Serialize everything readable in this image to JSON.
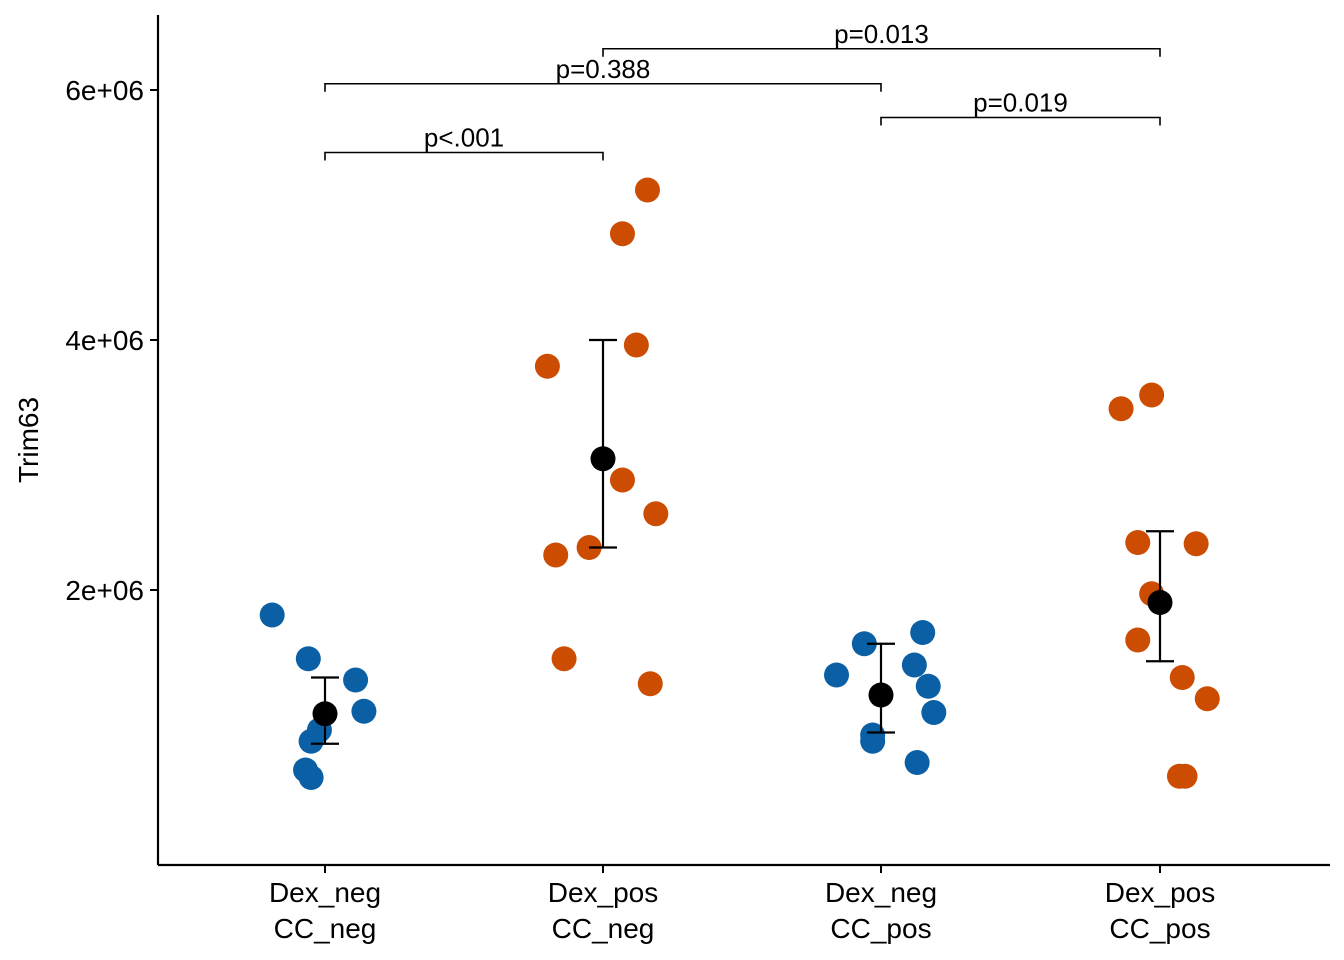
{
  "chart_data": {
    "type": "scatter",
    "title": "",
    "xlabel": "",
    "ylabel": "Trim63",
    "ylim": [
      -200000,
      6600000
    ],
    "yticks": [
      2000000,
      4000000,
      6000000
    ],
    "ytick_labels": [
      "2e+06",
      "4e+06",
      "6e+06"
    ],
    "grid": false,
    "legend": "none",
    "categories": [
      {
        "line1": "Dex_neg",
        "line2": "CC_neg"
      },
      {
        "line1": "Dex_pos",
        "line2": "CC_neg"
      },
      {
        "line1": "Dex_neg",
        "line2": "CC_pos"
      },
      {
        "line1": "Dex_pos",
        "line2": "CC_pos"
      }
    ],
    "groups": [
      {
        "color": "#0b5fa5",
        "points": [
          {
            "jitter": -0.19,
            "y": 1800000
          },
          {
            "jitter": -0.06,
            "y": 1450000
          },
          {
            "jitter": 0.11,
            "y": 1280000
          },
          {
            "jitter": 0.14,
            "y": 1030000
          },
          {
            "jitter": -0.05,
            "y": 790000
          },
          {
            "jitter": -0.02,
            "y": 880000
          },
          {
            "jitter": -0.07,
            "y": 560000
          },
          {
            "jitter": -0.05,
            "y": 500000
          }
        ],
        "mean": 1010000,
        "err_low": 770000,
        "err_high": 1300000
      },
      {
        "color": "#cc4c02",
        "points": [
          {
            "jitter": 0.16,
            "y": 5200000
          },
          {
            "jitter": 0.07,
            "y": 4850000
          },
          {
            "jitter": 0.12,
            "y": 3960000
          },
          {
            "jitter": -0.2,
            "y": 3790000
          },
          {
            "jitter": 0.07,
            "y": 2880000
          },
          {
            "jitter": 0.19,
            "y": 2610000
          },
          {
            "jitter": -0.05,
            "y": 2340000
          },
          {
            "jitter": -0.17,
            "y": 2280000
          },
          {
            "jitter": -0.14,
            "y": 1450000
          },
          {
            "jitter": 0.17,
            "y": 1250000
          }
        ],
        "mean": 3050000,
        "err_low": 2340000,
        "err_high": 4000000
      },
      {
        "color": "#0b5fa5",
        "points": [
          {
            "jitter": 0.15,
            "y": 1660000
          },
          {
            "jitter": -0.06,
            "y": 1570000
          },
          {
            "jitter": 0.12,
            "y": 1400000
          },
          {
            "jitter": -0.16,
            "y": 1320000
          },
          {
            "jitter": 0.17,
            "y": 1230000
          },
          {
            "jitter": 0.19,
            "y": 1020000
          },
          {
            "jitter": -0.03,
            "y": 840000
          },
          {
            "jitter": -0.03,
            "y": 790000
          },
          {
            "jitter": 0.13,
            "y": 620000
          }
        ],
        "mean": 1160000,
        "err_low": 860000,
        "err_high": 1570000
      },
      {
        "color": "#cc4c02",
        "points": [
          {
            "jitter": -0.03,
            "y": 3560000
          },
          {
            "jitter": -0.14,
            "y": 3450000
          },
          {
            "jitter": -0.08,
            "y": 2380000
          },
          {
            "jitter": 0.13,
            "y": 2370000
          },
          {
            "jitter": -0.03,
            "y": 1970000
          },
          {
            "jitter": -0.08,
            "y": 1600000
          },
          {
            "jitter": 0.08,
            "y": 1300000
          },
          {
            "jitter": 0.17,
            "y": 1130000
          },
          {
            "jitter": 0.07,
            "y": 510000
          },
          {
            "jitter": 0.09,
            "y": 510000
          }
        ],
        "mean": 1900000,
        "err_low": 1430000,
        "err_high": 2470000
      }
    ],
    "comparisons": [
      {
        "from": 1,
        "to": 2,
        "y": 5500000,
        "label": "p<.001"
      },
      {
        "from": 1,
        "to": 3,
        "y": 6050000,
        "label": "p=0.388"
      },
      {
        "from": 3,
        "to": 4,
        "y": 5780000,
        "label": "p=0.019"
      },
      {
        "from": 2,
        "to": 4,
        "y": 6330000,
        "label": "p=0.013"
      }
    ]
  }
}
